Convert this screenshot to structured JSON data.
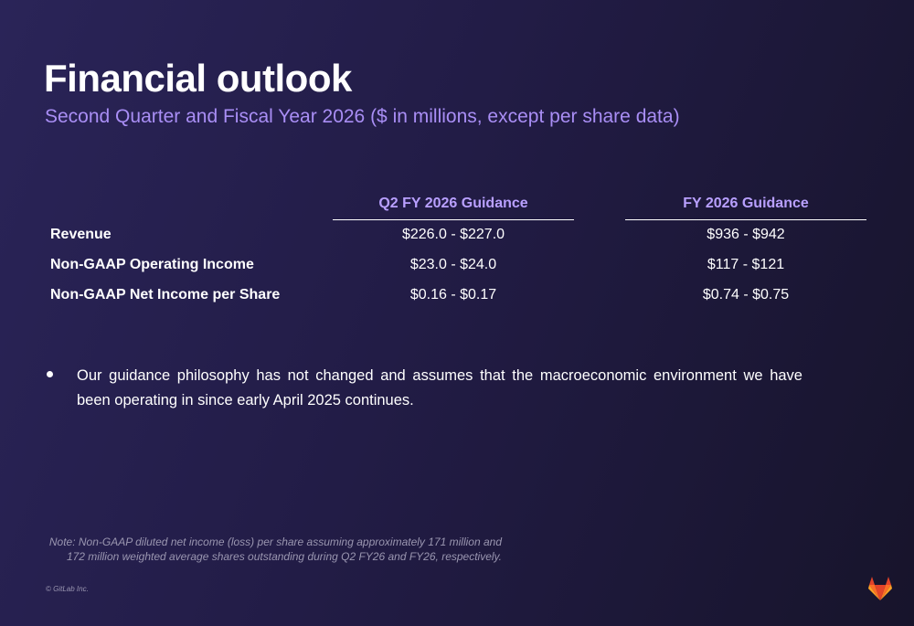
{
  "header": {
    "title": "Financial outlook",
    "subtitle": "Second Quarter and Fiscal Year 2026 ($ in millions, except per share data)"
  },
  "table": {
    "columns": [
      "Q2 FY 2026 Guidance",
      "FY 2026 Guidance"
    ],
    "rows": [
      {
        "label": "Revenue",
        "q2": "$226.0 - $227.0",
        "fy": "$936 - $942"
      },
      {
        "label": "Non-GAAP Operating Income",
        "q2": "$23.0 - $24.0",
        "fy": "$117 - $121"
      },
      {
        "label": "Non-GAAP Net Income per Share",
        "q2": "$0.16 - $0.17",
        "fy": "$0.74 - $0.75"
      }
    ]
  },
  "bullets": [
    "Our guidance philosophy has not changed and assumes that the macroeconomic environment we have been operating in since early April 2025 continues."
  ],
  "note": {
    "line1": "Note: Non-GAAP diluted net income (loss) per share assuming approximately 171 million and",
    "line2": "172 million weighted average shares outstanding during Q2 FY26 and FY26, respectively."
  },
  "footer": {
    "copyright": "© GitLab Inc.",
    "logo_icon": "gitlab-tanuki-icon"
  },
  "colors": {
    "accent": "#a98ef5",
    "heading_accent": "#b9a0ff",
    "logo_orange": "#fc6d26",
    "logo_red": "#e24329",
    "logo_amber": "#fca326"
  }
}
